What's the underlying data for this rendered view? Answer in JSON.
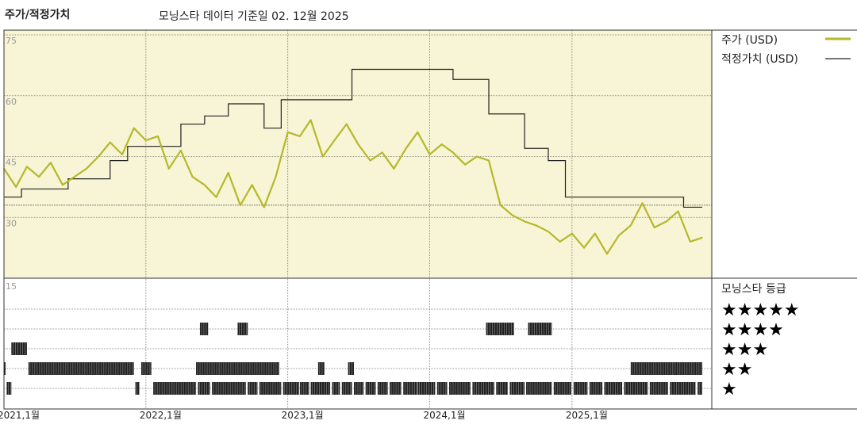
{
  "header": {
    "title": "주가/적정가치",
    "subtitle": "모닝스타 데이터 기준일 02. 12월 2025"
  },
  "chart_data": {
    "type": "line",
    "title": "주가/적정가치",
    "y_ticks": [
      "75",
      "60",
      "45",
      "30"
    ],
    "ylim": [
      15,
      75
    ],
    "x_ticks": [
      "2021,1월",
      "2022,1월",
      "2023,1월",
      "2024,1월",
      "2025,1월"
    ],
    "x_range": [
      "2021-01-01",
      "2025-12-02"
    ],
    "grid": true,
    "legend_position": "right",
    "colors": {
      "price": "#b5b82a",
      "fair_value": "#222222",
      "plot_bg": "#f8f4d6",
      "rating_gold": "#2e7d5e",
      "rating_dark": "#222222"
    },
    "series": [
      {
        "name": "주가 (USD)",
        "points": [
          [
            "2021-01-01",
            42
          ],
          [
            "2021-02-01",
            37.5
          ],
          [
            "2021-03-01",
            42.5
          ],
          [
            "2021-04-01",
            40
          ],
          [
            "2021-05-01",
            43.5
          ],
          [
            "2021-06-01",
            38
          ],
          [
            "2021-07-01",
            40
          ],
          [
            "2021-08-01",
            42
          ],
          [
            "2021-09-01",
            45
          ],
          [
            "2021-10-01",
            48.5
          ],
          [
            "2021-11-01",
            45.5
          ],
          [
            "2021-12-01",
            52
          ],
          [
            "2022-01-01",
            49
          ],
          [
            "2022-02-01",
            50
          ],
          [
            "2022-03-01",
            42
          ],
          [
            "2022-04-01",
            46.5
          ],
          [
            "2022-05-01",
            40
          ],
          [
            "2022-06-01",
            38
          ],
          [
            "2022-07-01",
            35
          ],
          [
            "2022-08-01",
            41
          ],
          [
            "2022-09-01",
            33
          ],
          [
            "2022-10-01",
            38
          ],
          [
            "2022-11-01",
            32.5
          ],
          [
            "2022-12-01",
            40
          ],
          [
            "2023-01-01",
            51
          ],
          [
            "2023-02-01",
            50
          ],
          [
            "2023-03-01",
            54
          ],
          [
            "2023-04-01",
            45
          ],
          [
            "2023-05-01",
            49
          ],
          [
            "2023-06-01",
            53
          ],
          [
            "2023-07-01",
            48
          ],
          [
            "2023-08-01",
            44
          ],
          [
            "2023-09-01",
            46
          ],
          [
            "2023-10-01",
            42
          ],
          [
            "2023-11-01",
            47
          ],
          [
            "2023-12-01",
            51
          ],
          [
            "2024-01-01",
            45.5
          ],
          [
            "2024-02-01",
            48
          ],
          [
            "2024-03-01",
            46
          ],
          [
            "2024-04-01",
            43
          ],
          [
            "2024-05-01",
            45
          ],
          [
            "2024-06-01",
            44
          ],
          [
            "2024-07-01",
            33
          ],
          [
            "2024-08-01",
            30.5
          ],
          [
            "2024-09-01",
            29
          ],
          [
            "2024-10-01",
            28
          ],
          [
            "2024-11-01",
            26.5
          ],
          [
            "2024-12-01",
            24
          ],
          [
            "2025-01-01",
            26
          ],
          [
            "2025-02-01",
            22.5
          ],
          [
            "2025-03-01",
            26
          ],
          [
            "2025-04-01",
            21
          ],
          [
            "2025-05-01",
            25.5
          ],
          [
            "2025-06-01",
            28
          ],
          [
            "2025-07-01",
            33.5
          ],
          [
            "2025-08-01",
            27.5
          ],
          [
            "2025-09-01",
            29
          ],
          [
            "2025-10-01",
            31.5
          ],
          [
            "2025-11-01",
            24
          ],
          [
            "2025-12-02",
            25
          ]
        ]
      },
      {
        "name": "적정가치 (USD)",
        "steps": [
          [
            "2021-01-01",
            35
          ],
          [
            "2021-02-15",
            37
          ],
          [
            "2021-06-15",
            39.5
          ],
          [
            "2021-10-01",
            44
          ],
          [
            "2021-11-15",
            47.5
          ],
          [
            "2022-04-01",
            53
          ],
          [
            "2022-06-01",
            55
          ],
          [
            "2022-08-01",
            58
          ],
          [
            "2022-11-01",
            52
          ],
          [
            "2022-12-15",
            59
          ],
          [
            "2023-06-15",
            66.5
          ],
          [
            "2023-12-15",
            66.5
          ],
          [
            "2024-03-01",
            64
          ],
          [
            "2024-06-01",
            55.5
          ],
          [
            "2024-09-01",
            47
          ],
          [
            "2024-11-01",
            44
          ],
          [
            "2024-12-15",
            35
          ],
          [
            "2025-10-15",
            32.5
          ],
          [
            "2025-12-02",
            32.5
          ]
        ]
      }
    ],
    "rating": {
      "title": "모닝스타 등급",
      "y_tick": "15",
      "levels": [
        "★★★★★",
        "★★★★",
        "★★★",
        "★★",
        "★"
      ],
      "periods": [
        [
          "2021-01-01",
          "2021-01-05",
          3
        ],
        [
          "2021-01-08",
          "2021-01-20",
          4
        ],
        [
          "2021-01-20",
          "2021-03-01",
          2
        ],
        [
          "2021-03-05",
          "2021-12-01",
          3
        ],
        [
          "2021-12-05",
          "2021-12-15",
          4
        ],
        [
          "2021-12-20",
          "2022-01-15",
          3
        ],
        [
          "2022-01-20",
          "2022-03-10",
          4
        ],
        [
          "2022-03-10",
          "2022-05-10",
          4
        ],
        [
          "2022-05-15",
          "2022-06-15",
          4
        ],
        [
          "2022-06-20",
          "2022-09-15",
          4
        ],
        [
          "2022-09-20",
          "2022-10-15",
          4
        ],
        [
          "2022-10-20",
          "2022-12-15",
          4
        ],
        [
          "2022-12-20",
          "2023-01-30",
          4
        ],
        [
          "2023-02-01",
          "2023-02-25",
          4
        ],
        [
          "2023-03-01",
          "2023-04-20",
          4
        ],
        [
          "2023-04-25",
          "2023-05-15",
          4
        ],
        [
          "2023-05-20",
          "2023-06-15",
          4
        ],
        [
          "2023-06-20",
          "2023-07-15",
          4
        ],
        [
          "2023-07-20",
          "2023-08-15",
          4
        ],
        [
          "2023-08-20",
          "2023-09-15",
          4
        ],
        [
          "2023-09-20",
          "2023-10-20",
          4
        ],
        [
          "2023-10-25",
          "2023-11-30",
          4
        ],
        [
          "2023-12-01",
          "2024-01-15",
          4
        ],
        [
          "2024-01-20",
          "2024-02-15",
          4
        ],
        [
          "2024-02-20",
          "2024-04-15",
          4
        ],
        [
          "2024-04-20",
          "2024-06-15",
          4
        ],
        [
          "2024-06-20",
          "2024-07-20",
          4
        ],
        [
          "2024-07-25",
          "2024-09-01",
          4
        ],
        [
          "2024-09-05",
          "2024-11-10",
          4
        ],
        [
          "2024-11-15",
          "2024-12-30",
          4
        ],
        [
          "2025-01-05",
          "2025-02-10",
          4
        ],
        [
          "2025-02-15",
          "2025-03-20",
          4
        ],
        [
          "2025-03-25",
          "2025-05-10",
          4
        ],
        [
          "2025-05-15",
          "2025-07-15",
          4
        ],
        [
          "2025-07-20",
          "2025-09-05",
          4
        ],
        [
          "2025-09-10",
          "2025-11-15",
          4
        ],
        [
          "2025-11-20",
          "2025-12-02",
          4
        ],
        [
          "2022-05-20",
          "2022-06-10",
          1
        ],
        [
          "2022-08-25",
          "2022-09-20",
          1
        ],
        [
          "2024-05-25",
          "2024-08-05",
          1
        ],
        [
          "2024-09-10",
          "2024-11-10",
          1
        ],
        [
          "2022-05-10",
          "2022-07-10",
          3
        ],
        [
          "2022-07-10",
          "2022-12-10",
          3
        ],
        [
          "2023-03-20",
          "2023-04-05",
          3
        ],
        [
          "2023-06-05",
          "2023-06-20",
          3
        ],
        [
          "2025-06-01",
          "2025-12-02",
          3
        ]
      ]
    }
  },
  "legend": {
    "price": "주가 (USD)",
    "fair_value": "적정가치 (USD)",
    "rating_title": "모닝스타 등급"
  }
}
